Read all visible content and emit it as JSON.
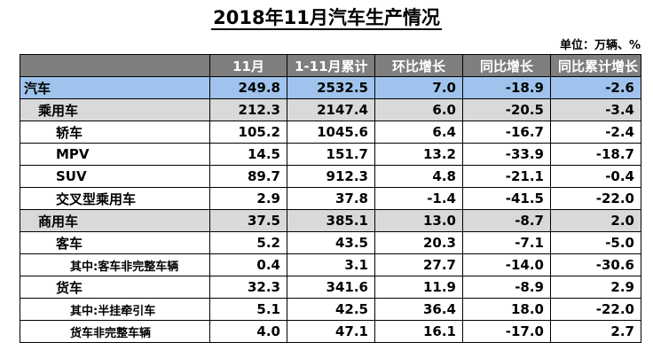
{
  "title": "2018年11月汽车生产情况",
  "unit": "单位：万辆、%",
  "headers": [
    "",
    "11月",
    "1-11月累计",
    "环比增长",
    "同比增长",
    "同比累计增长"
  ],
  "rows": [
    {
      "name": "汽车",
      "level": 0,
      "v": [
        "249.8",
        "2532.5",
        "7.0",
        "-18.9",
        "-2.6"
      ]
    },
    {
      "name": "乘用车",
      "level": 1,
      "v": [
        "212.3",
        "2147.4",
        "6.0",
        "-20.5",
        "-3.4"
      ]
    },
    {
      "name": "轿车",
      "level": 2,
      "v": [
        "105.2",
        "1045.6",
        "6.4",
        "-16.7",
        "-2.4"
      ]
    },
    {
      "name": "MPV",
      "level": 2,
      "v": [
        "14.5",
        "151.7",
        "13.2",
        "-33.9",
        "-18.7"
      ]
    },
    {
      "name": "SUV",
      "level": 2,
      "v": [
        "89.7",
        "912.3",
        "4.8",
        "-21.1",
        "-0.4"
      ]
    },
    {
      "name": "交叉型乘用车",
      "level": 2,
      "v": [
        "2.9",
        "37.8",
        "-1.4",
        "-41.5",
        "-22.0"
      ]
    },
    {
      "name": "商用车",
      "level": 1,
      "v": [
        "37.5",
        "385.1",
        "13.0",
        "-8.7",
        "2.0"
      ]
    },
    {
      "name": "客车",
      "level": 2,
      "v": [
        "5.2",
        "43.5",
        "20.3",
        "-7.1",
        "-5.0"
      ]
    },
    {
      "name": "其中:客车非完整车辆",
      "level": 3,
      "v": [
        "0.4",
        "3.1",
        "27.7",
        "-14.0",
        "-30.6"
      ]
    },
    {
      "name": "货车",
      "level": 2,
      "v": [
        "32.3",
        "341.6",
        "11.9",
        "-8.9",
        "2.9"
      ]
    },
    {
      "name": "其中:半挂牵引车",
      "level": 3,
      "v": [
        "5.1",
        "42.5",
        "36.4",
        "18.0",
        "-22.0"
      ]
    },
    {
      "name": "货车非完整车辆",
      "level": 3,
      "v": [
        "4.0",
        "47.1",
        "16.1",
        "-17.0",
        "2.7"
      ]
    }
  ]
}
